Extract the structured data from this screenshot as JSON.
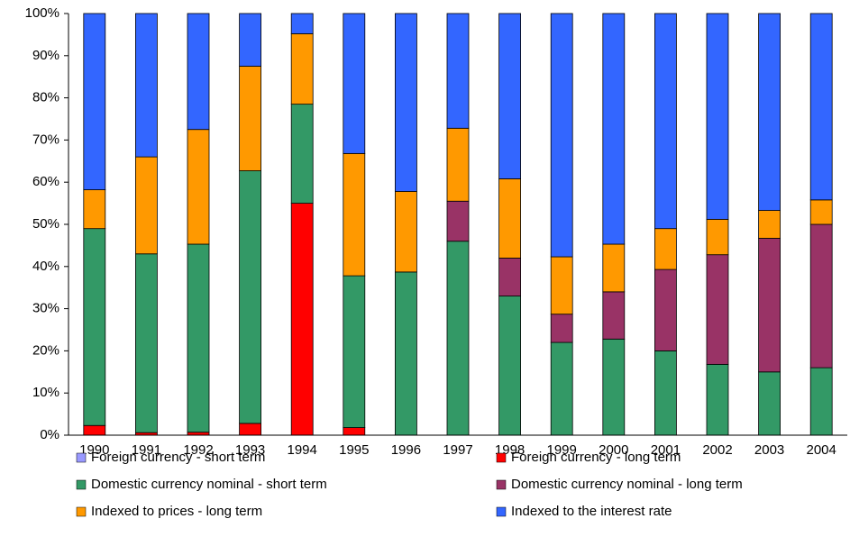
{
  "chart_data": {
    "type": "stacked_bar",
    "categories": [
      "1990",
      "1991",
      "1992",
      "1993",
      "1994",
      "1995",
      "1996",
      "1997",
      "1998",
      "1999",
      "2000",
      "2001",
      "2002",
      "2003",
      "2004"
    ],
    "series": [
      {
        "name": "Foreign currency - short term",
        "color": "#9999ff",
        "values": [
          0,
          0,
          0,
          0,
          0,
          0,
          0,
          0,
          0,
          0,
          0,
          0,
          0,
          0,
          0
        ]
      },
      {
        "name": "Foreign currency - long term",
        "color": "#ff0000",
        "values": [
          2.3,
          0.6,
          0.7,
          2.8,
          55,
          1.8,
          0,
          0,
          0,
          0,
          0,
          0,
          0,
          0,
          0
        ]
      },
      {
        "name": "Domestic currency nominal - short term",
        "color": "#339966",
        "values": [
          46.7,
          42.4,
          44.6,
          59.9,
          23.5,
          36,
          38.7,
          46,
          33,
          22,
          22.8,
          20,
          16.8,
          15,
          16
        ]
      },
      {
        "name": "Domestic currency nominal - long term",
        "color": "#993366",
        "values": [
          0,
          0,
          0,
          0,
          0,
          0,
          0,
          9.5,
          9,
          6.7,
          11.2,
          19.3,
          26,
          31.7,
          34
        ]
      },
      {
        "name": "Indexed to prices - long term",
        "color": "#ff9900",
        "values": [
          9.2,
          23,
          27.2,
          24.8,
          16.7,
          29,
          19.1,
          17.3,
          18.8,
          13.6,
          11.3,
          9.7,
          8.4,
          6.6,
          5.8
        ]
      },
      {
        "name": "Indexed to the interest rate",
        "color": "#3366ff",
        "values": [
          41.8,
          34,
          27.5,
          12.5,
          4.8,
          33.2,
          42.2,
          27.2,
          39.2,
          57.7,
          54.7,
          51,
          48.8,
          46.7,
          44.2
        ]
      }
    ],
    "ylim": [
      0,
      100
    ],
    "yticks": [
      {
        "value": 0,
        "label": "0%"
      },
      {
        "value": 10,
        "label": "10%"
      },
      {
        "value": 20,
        "label": "20%"
      },
      {
        "value": 30,
        "label": "30%"
      },
      {
        "value": 40,
        "label": "40%"
      },
      {
        "value": 50,
        "label": "50%"
      },
      {
        "value": 60,
        "label": "60%"
      },
      {
        "value": 70,
        "label": "70%"
      },
      {
        "value": 80,
        "label": "80%"
      },
      {
        "value": 90,
        "label": "90%"
      },
      {
        "value": 100,
        "label": "100%"
      }
    ],
    "grid": false,
    "legend": "bottom"
  }
}
